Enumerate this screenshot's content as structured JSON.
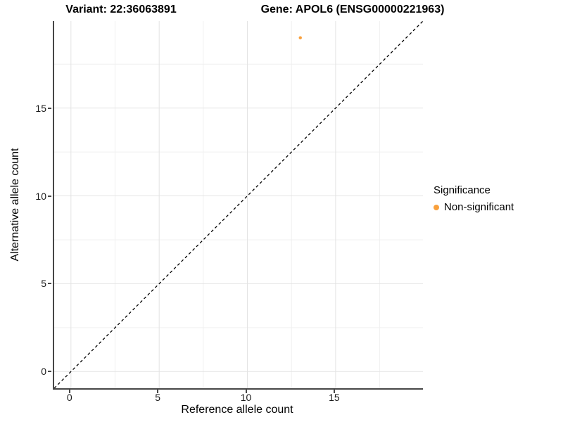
{
  "chart_data": {
    "type": "scatter",
    "title_left": "Variant: 22:36063891",
    "title_right": "Gene: APOL6 (ENSG00000221963)",
    "xlabel": "Reference allele count",
    "ylabel": "Alternative allele count",
    "xlim": [
      -0.95,
      19.95
    ],
    "ylim": [
      -0.95,
      19.95
    ],
    "x_ticks": [
      0,
      5,
      10,
      15
    ],
    "y_ticks": [
      0,
      5,
      10,
      15
    ],
    "x_minor": [
      2.5,
      7.5,
      12.5,
      17.5
    ],
    "y_minor": [
      2.5,
      7.5,
      12.5,
      17.5
    ],
    "grid": true,
    "diagonal": {
      "style": "dashed",
      "from": [
        -0.95,
        -0.95
      ],
      "to": [
        19.95,
        19.95
      ],
      "color": "#000000"
    },
    "points": [
      {
        "x": 13,
        "y": 19,
        "series": "Non-significant",
        "color": "#F9A03C",
        "radius": 2.2
      }
    ],
    "legend": {
      "position": "right",
      "title": "Significance",
      "entries": [
        {
          "label": "Non-significant",
          "color": "#F9A03C"
        }
      ]
    },
    "colors": {
      "grid_major": "#E3E3E3",
      "grid_minor": "#F0F0F0",
      "axis_line": "#474747",
      "tick_text": "#1a1a1a"
    }
  }
}
